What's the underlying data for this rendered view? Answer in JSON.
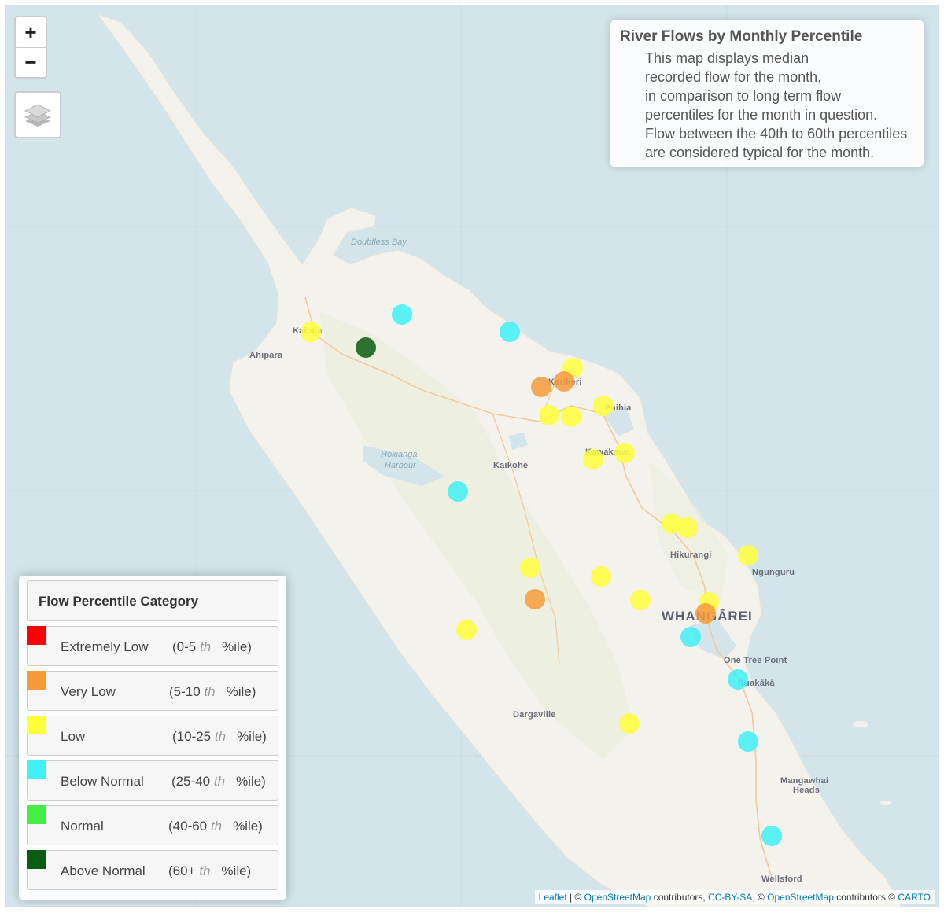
{
  "map": {
    "controls": {
      "zoom_in": "+",
      "zoom_out": "−",
      "layers_icon": "layers-icon"
    },
    "places": [
      {
        "name": "Ahipara",
        "cls": "place"
      },
      {
        "name": "Kaitaia",
        "cls": "place"
      },
      {
        "name": "Kerikeri",
        "cls": "place"
      },
      {
        "name": "Paihia",
        "cls": "place"
      },
      {
        "name": "Kawakawa",
        "cls": "place"
      },
      {
        "name": "Kaikohe",
        "cls": "place"
      },
      {
        "name": "Hikurangi",
        "cls": "place"
      },
      {
        "name": "Ngunguru",
        "cls": "place"
      },
      {
        "name": "WHANGĀREI",
        "cls": "city"
      },
      {
        "name": "One Tree Point",
        "cls": "place"
      },
      {
        "name": "Ruakākā",
        "cls": "place"
      },
      {
        "name": "Dargaville",
        "cls": "place"
      },
      {
        "name": "Mangawhai",
        "cls": "place"
      },
      {
        "name": "Heads",
        "cls": "place"
      },
      {
        "name": "Wellsford",
        "cls": "place"
      },
      {
        "name": "Doubtless Bay",
        "cls": "water"
      },
      {
        "name": "Hokianga",
        "cls": "water"
      },
      {
        "name": "Harbour",
        "cls": "water"
      }
    ]
  },
  "info": {
    "title": "River Flows by Monthly Percentile",
    "lines": [
      "This map displays median",
      "recorded flow for the month,",
      "in comparison to long term flow",
      "percentiles for the month in question.",
      "Flow between the 40th to 60th percentiles",
      "are considered typical for the month."
    ]
  },
  "legend": {
    "title": "Flow Percentile Category",
    "items": [
      {
        "label": "Extremely Low",
        "range_pre": "(0-5 ",
        "th": "th",
        "range_post": "%ile)",
        "color": "#ff0000"
      },
      {
        "label": "Very Low",
        "range_pre": "(5-10 ",
        "th": "th",
        "range_post": "%ile)",
        "color": "#f79b3a"
      },
      {
        "label": "Low",
        "range_pre": "(10-25 ",
        "th": "th",
        "range_post": "%ile)",
        "color": "#ffff3c"
      },
      {
        "label": "Below Normal",
        "range_pre": "(25-40 ",
        "th": "th",
        "range_post": "%ile)",
        "color": "#40f0f5"
      },
      {
        "label": "Normal",
        "range_pre": "(40-60 ",
        "th": "th",
        "range_post": "%ile)",
        "color": "#44f044"
      },
      {
        "label": "Above Normal",
        "range_pre": "(60+ ",
        "th": "th",
        "range_post": "%ile)",
        "color": "#0a5c12"
      }
    ]
  },
  "stations": [
    {
      "category": "Low"
    },
    {
      "category": "Above Normal"
    },
    {
      "category": "Below Normal"
    },
    {
      "category": "Below Normal"
    },
    {
      "category": "Low"
    },
    {
      "category": "Very Low"
    },
    {
      "category": "Very Low"
    },
    {
      "category": "Low"
    },
    {
      "category": "Low"
    },
    {
      "category": "Low"
    },
    {
      "category": "Low"
    },
    {
      "category": "Low"
    },
    {
      "category": "Below Normal"
    },
    {
      "category": "Low"
    },
    {
      "category": "Low"
    },
    {
      "category": "Low"
    },
    {
      "category": "Low"
    },
    {
      "category": "Very Low"
    },
    {
      "category": "Low"
    },
    {
      "category": "Low"
    },
    {
      "category": "Low"
    },
    {
      "category": "Very Low"
    },
    {
      "category": "Below Normal"
    },
    {
      "category": "Low"
    },
    {
      "category": "Below Normal"
    },
    {
      "category": "Low"
    },
    {
      "category": "Below Normal"
    },
    {
      "category": "Below Normal"
    }
  ],
  "attribution": {
    "leaflet": "Leaflet",
    "sep1": " | © ",
    "osm1": "OpenStreetMap",
    "mid1": " contributors, ",
    "ccbysa": "CC-BY-SA",
    "sep2": ", © ",
    "osm2": "OpenStreetMap",
    "mid2": " contributors © ",
    "carto": "CARTO"
  }
}
